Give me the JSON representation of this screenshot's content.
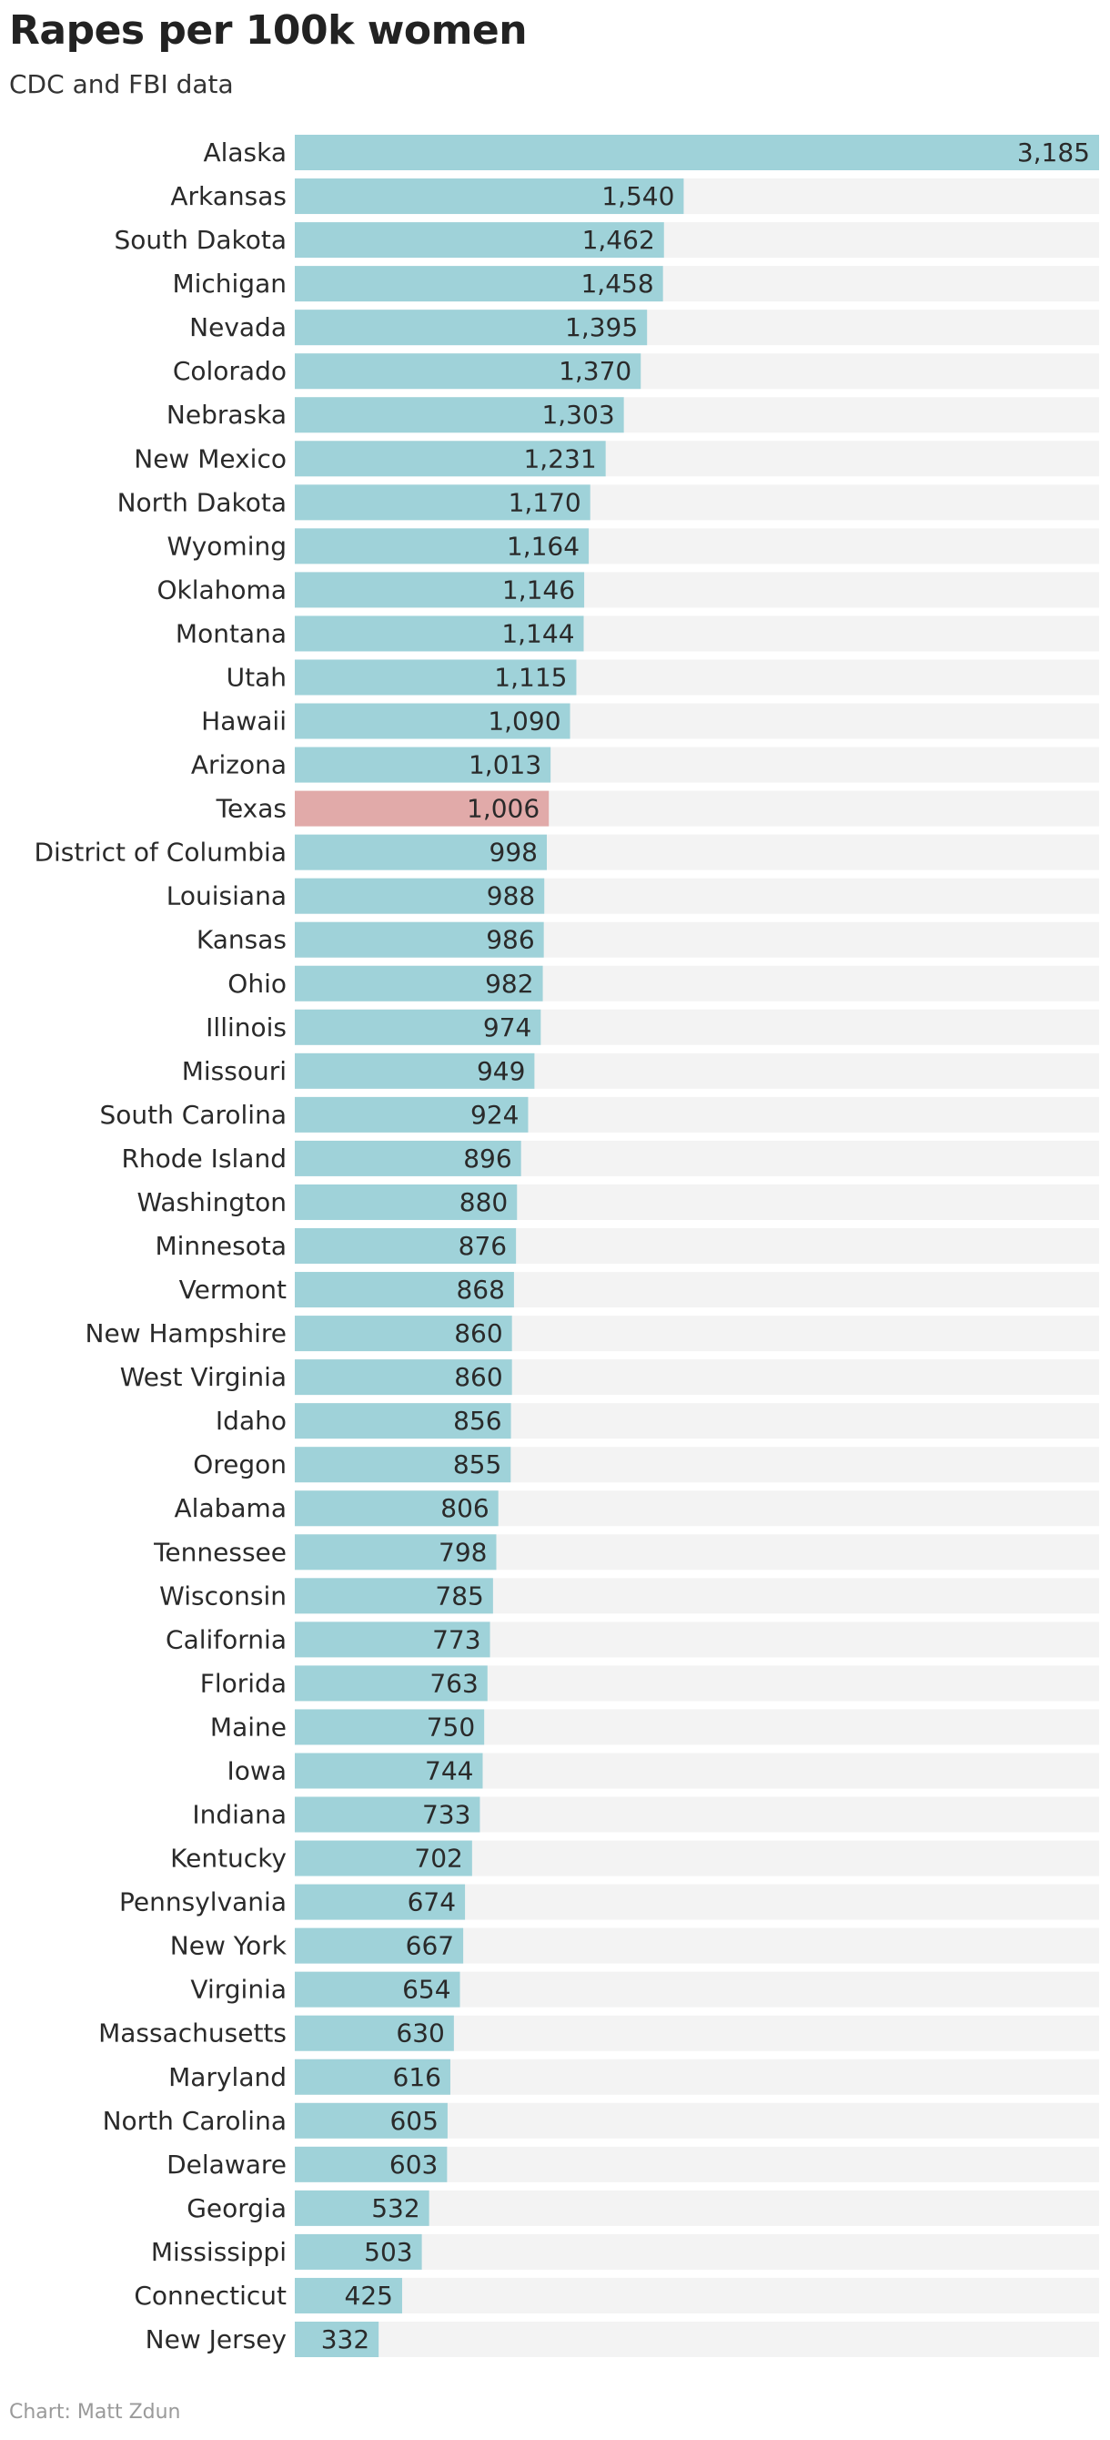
{
  "chart_data": {
    "type": "bar",
    "orientation": "horizontal",
    "title": "Rapes per 100k women",
    "subtitle": "CDC and FBI data",
    "footer": "Chart: Matt Zdun",
    "xlim": [
      0,
      3185
    ],
    "grid": false,
    "value_labels_format": "thousands-comma",
    "colors": {
      "bar": "#9fd2d9",
      "highlight": "#e1aaa9",
      "track": "#f3f3f3"
    },
    "highlight_category": "Texas",
    "categories": [
      "Alaska",
      "Arkansas",
      "South Dakota",
      "Michigan",
      "Nevada",
      "Colorado",
      "Nebraska",
      "New Mexico",
      "North Dakota",
      "Wyoming",
      "Oklahoma",
      "Montana",
      "Utah",
      "Hawaii",
      "Arizona",
      "Texas",
      "District of Columbia",
      "Louisiana",
      "Kansas",
      "Ohio",
      "Illinois",
      "Missouri",
      "South Carolina",
      "Rhode Island",
      "Washington",
      "Minnesota",
      "Vermont",
      "New Hampshire",
      "West Virginia",
      "Idaho",
      "Oregon",
      "Alabama",
      "Tennessee",
      "Wisconsin",
      "California",
      "Florida",
      "Maine",
      "Iowa",
      "Indiana",
      "Kentucky",
      "Pennsylvania",
      "New York",
      "Virginia",
      "Massachusetts",
      "Maryland",
      "North Carolina",
      "Delaware",
      "Georgia",
      "Mississippi",
      "Connecticut",
      "New Jersey"
    ],
    "values": [
      3185,
      1540,
      1462,
      1458,
      1395,
      1370,
      1303,
      1231,
      1170,
      1164,
      1146,
      1144,
      1115,
      1090,
      1013,
      1006,
      998,
      988,
      986,
      982,
      974,
      949,
      924,
      896,
      880,
      876,
      868,
      860,
      860,
      856,
      855,
      806,
      798,
      785,
      773,
      763,
      750,
      744,
      733,
      702,
      674,
      667,
      654,
      630,
      616,
      605,
      603,
      532,
      503,
      425,
      332
    ],
    "value_labels": [
      "3,185",
      "1,540",
      "1,462",
      "1,458",
      "1,395",
      "1,370",
      "1,303",
      "1,231",
      "1,170",
      "1,164",
      "1,146",
      "1,144",
      "1,115",
      "1,090",
      "1,013",
      "1,006",
      "998",
      "988",
      "986",
      "982",
      "974",
      "949",
      "924",
      "896",
      "880",
      "876",
      "868",
      "860",
      "860",
      "856",
      "855",
      "806",
      "798",
      "785",
      "773",
      "763",
      "750",
      "744",
      "733",
      "702",
      "674",
      "667",
      "654",
      "630",
      "616",
      "605",
      "603",
      "532",
      "503",
      "425",
      "332"
    ]
  }
}
